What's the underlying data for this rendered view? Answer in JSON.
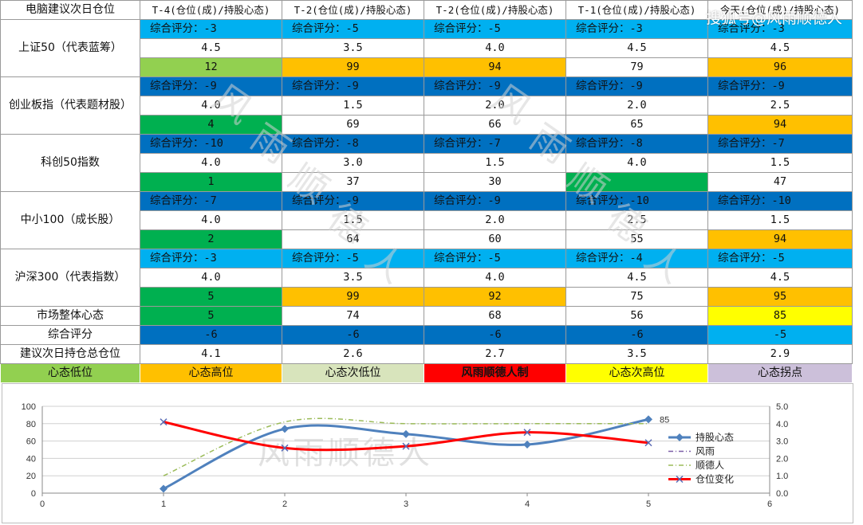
{
  "watermark": "搜狐号@风雨顺德人",
  "table_watermark_chars": [
    "风",
    "雨",
    "顺",
    "德",
    "人"
  ],
  "colors": {
    "green": "#92D050",
    "orange": "#FFC000",
    "light_green": "#D8E4BC",
    "red": "#FF0000",
    "yellow": "#FFFF00",
    "lavender": "#CCC0DA",
    "sky_blue": "#00B0F0",
    "dark_blue": "#0070C0",
    "dark_green": "#00B050",
    "white": "#FFFFFF"
  },
  "table": {
    "header": [
      "电脑建议次日仓位",
      "T-4(仓位(成)/持股心态)",
      "T-2(仓位(成)/持股心态)",
      "T-2(仓位(成)/持股心态)",
      "T-1(仓位(成)/持股心态)",
      "今天(仓位(成)/持股心态)"
    ],
    "indices": [
      {
        "name": "上证50（代表蓝筹）",
        "scores": [
          "综合评分：-3",
          "综合评分：-5",
          "综合评分：-5",
          "综合评分：-3",
          "综合评分：-3"
        ],
        "score_colors": [
          "sky_blue",
          "sky_blue",
          "sky_blue",
          "sky_blue",
          "sky_blue"
        ],
        "positions": [
          "4.5",
          "3.5",
          "4.0",
          "4.5",
          "4.5"
        ],
        "moods": [
          "12",
          "99",
          "94",
          "79",
          "96"
        ],
        "mood_colors": [
          "green",
          "orange",
          "orange",
          "white",
          "orange"
        ]
      },
      {
        "name": "创业板指（代表题材股）",
        "scores": [
          "综合评分：-9",
          "综合评分：-9",
          "综合评分：-9",
          "综合评分：-9",
          "综合评分：-9"
        ],
        "score_colors": [
          "dark_blue",
          "dark_blue",
          "dark_blue",
          "dark_blue",
          "dark_blue"
        ],
        "positions": [
          "4.0",
          "1.5",
          "2.0",
          "2.0",
          "2.5"
        ],
        "moods": [
          "4",
          "69",
          "66",
          "65",
          "94"
        ],
        "mood_colors": [
          "dark_green",
          "white",
          "white",
          "white",
          "orange"
        ]
      },
      {
        "name": "科创50指数",
        "scores": [
          "综合评分：-10",
          "综合评分：-8",
          "综合评分：-7",
          "综合评分：-8",
          "综合评分：-7"
        ],
        "score_colors": [
          "dark_blue",
          "dark_blue",
          "dark_blue",
          "dark_blue",
          "dark_blue"
        ],
        "positions": [
          "4.0",
          "3.0",
          "1.5",
          "4.0",
          "1.5"
        ],
        "moods": [
          "1",
          "37",
          "30",
          "",
          "47"
        ],
        "mood_colors": [
          "dark_green",
          "white",
          "white",
          "dark_green",
          "white"
        ]
      },
      {
        "name": "中小100（成长股）",
        "scores": [
          "综合评分：-7",
          "综合评分：-9",
          "综合评分：-9",
          "综合评分：-10",
          "综合评分：-10"
        ],
        "score_colors": [
          "dark_blue",
          "dark_blue",
          "dark_blue",
          "dark_blue",
          "dark_blue"
        ],
        "positions": [
          "4.0",
          "1.5",
          "2.0",
          "2.5",
          "1.5"
        ],
        "moods": [
          "2",
          "64",
          "60",
          "55",
          "94"
        ],
        "mood_colors": [
          "dark_green",
          "white",
          "white",
          "white",
          "orange"
        ]
      },
      {
        "name": "沪深300（代表指数）",
        "scores": [
          "综合评分：-3",
          "综合评分：-5",
          "综合评分：-5",
          "综合评分：-4",
          "综合评分：-5"
        ],
        "score_colors": [
          "sky_blue",
          "sky_blue",
          "sky_blue",
          "sky_blue",
          "sky_blue"
        ],
        "positions": [
          "4.0",
          "3.5",
          "4.0",
          "4.5",
          "4.5"
        ],
        "moods": [
          "5",
          "99",
          "92",
          "75",
          "95"
        ],
        "mood_colors": [
          "dark_green",
          "orange",
          "orange",
          "white",
          "orange"
        ]
      }
    ],
    "summary_rows": [
      {
        "label": "市场整体心态",
        "values": [
          "5",
          "74",
          "68",
          "56",
          "85"
        ],
        "colors": [
          "dark_green",
          "white",
          "white",
          "white",
          "yellow"
        ]
      },
      {
        "label": "综合评分",
        "values": [
          "-6",
          "-6",
          "-6",
          "-6",
          "-5"
        ],
        "colors": [
          "dark_blue",
          "dark_blue",
          "dark_blue",
          "dark_blue",
          "sky_blue"
        ]
      },
      {
        "label": "建议次日持仓总仓位",
        "values": [
          "4.1",
          "2.6",
          "2.7",
          "3.5",
          "2.9"
        ],
        "colors": [
          "white",
          "white",
          "white",
          "white",
          "white"
        ]
      }
    ],
    "legend": [
      {
        "label": "心态低位",
        "color": "green"
      },
      {
        "label": "心态高位",
        "color": "orange"
      },
      {
        "label": "心态次低位",
        "color": "light_green"
      },
      {
        "label": "风雨顺德人制",
        "color": "red"
      },
      {
        "label": "心态次高位",
        "color": "yellow"
      },
      {
        "label": "心态拐点",
        "color": "lavender"
      }
    ]
  },
  "chart_data": {
    "type": "line",
    "watermark": "风雨顺德人",
    "x_ticks": [
      "0",
      "1",
      "2",
      "3",
      "4",
      "5",
      "6"
    ],
    "xlim": [
      0,
      6
    ],
    "y_left_ticks": [
      "0",
      "20",
      "40",
      "60",
      "80",
      "100"
    ],
    "ylim_left": [
      0,
      100
    ],
    "y_right_ticks": [
      "0.0",
      "1.0",
      "2.0",
      "3.0",
      "4.0",
      "5.0"
    ],
    "ylim_right": [
      0,
      5
    ],
    "grid": true,
    "legend_position": "right",
    "series": [
      {
        "name": "持股心态",
        "axis": "left",
        "x": [
          1,
          2,
          3,
          4,
          5
        ],
        "values": [
          5,
          74,
          68,
          56,
          85
        ],
        "color": "#4F81BD",
        "style": "solid",
        "marker": "diamond"
      },
      {
        "name": "风雨",
        "axis": "right",
        "x": [],
        "values": [],
        "color": "#7B5EA7",
        "style": "dashdot",
        "marker": "none"
      },
      {
        "name": "顺德人",
        "axis": "right",
        "x": [
          1,
          2,
          3,
          4,
          5
        ],
        "values": [
          1.0,
          4.1,
          4.0,
          4.0,
          4.0
        ],
        "color": "#9BBB59",
        "style": "dashdot",
        "marker": "none"
      },
      {
        "name": "仓位变化",
        "axis": "right",
        "x": [
          1,
          2,
          3,
          4,
          5
        ],
        "values": [
          4.1,
          2.6,
          2.7,
          3.5,
          2.9
        ],
        "color": "#FF0000",
        "style": "solid",
        "marker": "x"
      }
    ],
    "data_labels": [
      {
        "series": "持股心态",
        "x": 5,
        "text": "85"
      }
    ]
  }
}
